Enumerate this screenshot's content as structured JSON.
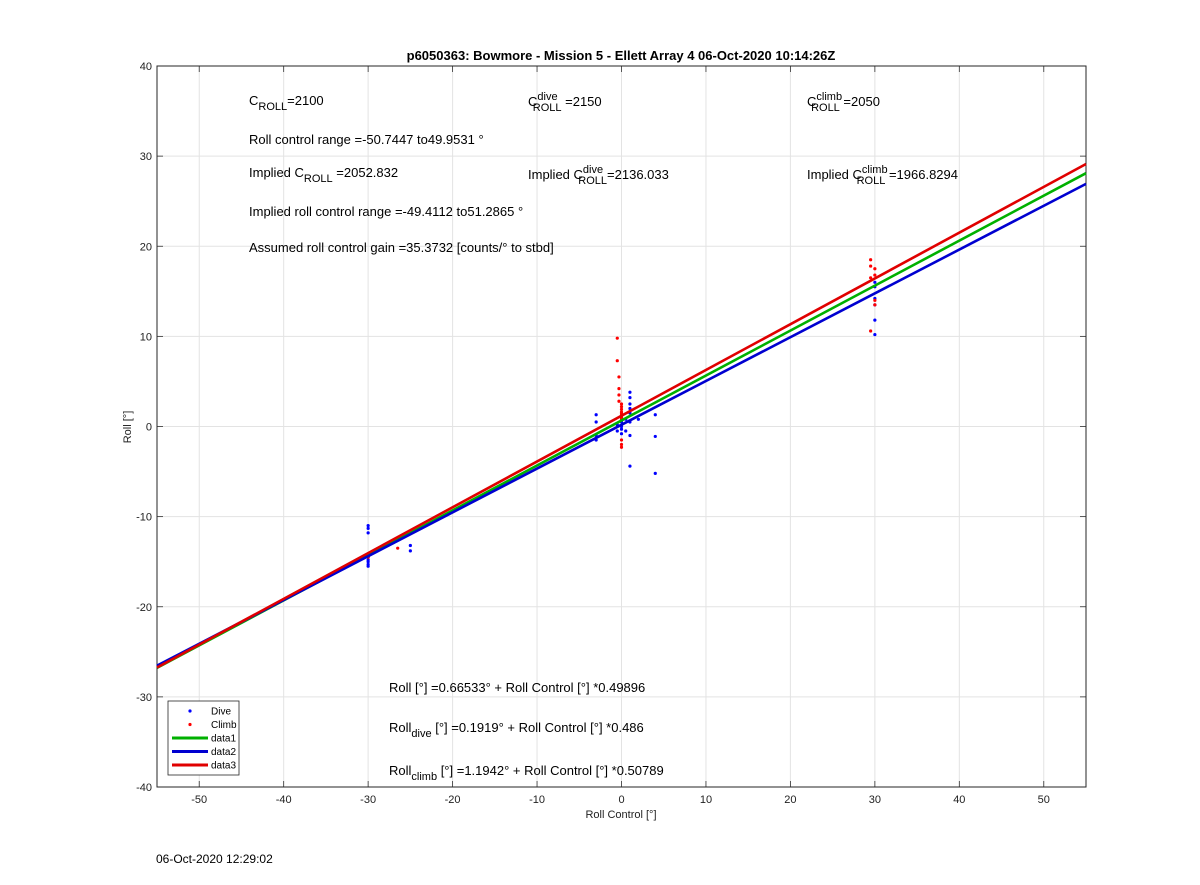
{
  "chart_data": {
    "type": "scatter",
    "title": "p6050363: Bowmore - Mission 5 - Ellett Array 4 06-Oct-2020 10:14:26Z",
    "xlabel": "Roll Control [°]",
    "ylabel": "Roll [°]",
    "xlim": [
      -55,
      55
    ],
    "ylim": [
      -40,
      40
    ],
    "xticks": [
      -50,
      -40,
      -30,
      -20,
      -10,
      0,
      10,
      20,
      30,
      40,
      50
    ],
    "yticks": [
      -40,
      -30,
      -20,
      -10,
      0,
      10,
      20,
      30,
      40
    ],
    "grid": true,
    "legend_position": "bottom-left",
    "series": [
      {
        "name": "Dive",
        "kind": "points",
        "color": "#0000ff",
        "x": [
          -30,
          -30,
          -30,
          -30,
          -30,
          -30,
          -30,
          -30,
          -25,
          -25,
          -3,
          -3,
          -3,
          -3,
          -0.5,
          -0.5,
          0,
          0,
          0,
          0,
          0,
          0.5,
          0.5,
          1,
          1,
          1,
          1,
          1,
          1,
          1,
          1,
          2,
          4,
          4,
          4,
          30,
          30,
          30,
          30,
          30,
          30
        ],
        "y": [
          -11,
          -11.3,
          -11.8,
          -14.5,
          -14.8,
          -15,
          -15.3,
          -15.5,
          -13.2,
          -13.8,
          1.3,
          0.5,
          -1,
          -1.5,
          -0.5,
          0.2,
          0,
          -0.3,
          0.5,
          -0.8,
          1,
          0.8,
          -0.5,
          3.8,
          3.2,
          2.5,
          2,
          1.5,
          0.5,
          -1,
          -4.4,
          0.8,
          1.3,
          -1.1,
          -5.2,
          16,
          15.5,
          14.2,
          13.5,
          11.8,
          10.2
        ]
      },
      {
        "name": "Climb",
        "kind": "points",
        "color": "#ff0000",
        "x": [
          -30,
          -26.5,
          -0.5,
          -0.5,
          -0.3,
          -0.3,
          -0.3,
          -0.3,
          0,
          0,
          0,
          0,
          0,
          0,
          0,
          0,
          0,
          0,
          0,
          29.5,
          29.5,
          29.5,
          29.5,
          30,
          30,
          30,
          30
        ],
        "y": [
          -14.5,
          -13.5,
          9.8,
          7.3,
          5.5,
          4.2,
          3.5,
          2.8,
          2.5,
          2.2,
          1.9,
          1.6,
          1.4,
          1.2,
          1.0,
          0.8,
          -1.5,
          -2,
          -2.3,
          18.5,
          17.8,
          16.5,
          10.6,
          17.5,
          16.8,
          14,
          13.5
        ]
      },
      {
        "name": "data1",
        "kind": "line",
        "color": "#00b000",
        "intercept": 0.66533,
        "slope": 0.49896
      },
      {
        "name": "data2",
        "kind": "line",
        "color": "#0000d0",
        "intercept": 0.1919,
        "slope": 0.486
      },
      {
        "name": "data3",
        "kind": "line",
        "color": "#e00000",
        "intercept": 1.1942,
        "slope": 0.50789
      }
    ],
    "annotations": {
      "c_roll": {
        "base": "C",
        "sub": "ROLL",
        "value": "=2100"
      },
      "c_roll_dive": {
        "base": "C",
        "sup": "dive",
        "sub": "ROLL",
        "value": " =2150"
      },
      "c_roll_climb": {
        "base": "C",
        "sup": "climb",
        "sub": "ROLL",
        "value": " =2050"
      },
      "roll_control_range": "Roll control range =-50.7447 to49.9531 °",
      "implied_c_roll": {
        "prefix": "Implied C",
        "sub": "ROLL",
        "value": " =2052.832"
      },
      "implied_c_roll_dive": {
        "prefix": "Implied C",
        "sup": "dive",
        "sub": "ROLL",
        "value": "=2136.033"
      },
      "implied_c_roll_climb": {
        "prefix": "Implied C",
        "sup": "climb",
        "sub": "ROLL",
        "value": " =1966.8294"
      },
      "implied_range": "Implied roll control range =-49.4112 to51.2865 °",
      "gain": "Assumed roll control gain =35.3732 [counts/° to stbd]",
      "fit_all": "Roll [°] =0.66533° + Roll Control [°] *0.49896",
      "fit_dive": {
        "base": "Roll",
        "sub": "dive",
        "rest": " [°] =0.1919° + Roll Control [°] *0.486"
      },
      "fit_climb": {
        "base": "Roll",
        "sub": "climb",
        "rest": " [°] =1.1942° + Roll Control [°] *0.50789"
      }
    }
  },
  "footer": {
    "timestamp": "06-Oct-2020 12:29:02"
  }
}
